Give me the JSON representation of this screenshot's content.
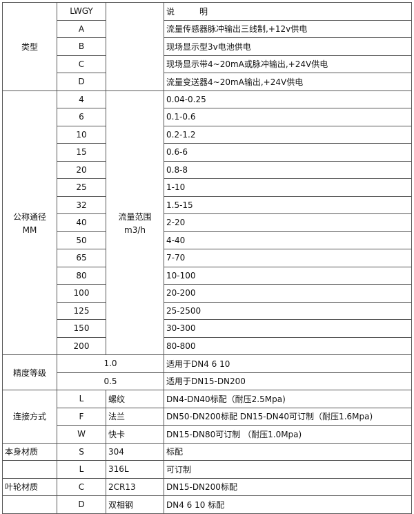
{
  "header": {
    "code": "LWGY",
    "desc": "说　　　明"
  },
  "type": {
    "label": "类型",
    "rows": [
      {
        "code": "A",
        "desc": "流量传感器脉冲输出三线制,+12v供电"
      },
      {
        "code": "B",
        "desc": "现场显示型3v电池供电"
      },
      {
        "code": "C",
        "desc": "现场显示带4~20mA或脉冲输出,+24V供电"
      },
      {
        "code": "D",
        "desc": "流量变送器4~20mA输出,+24V供电"
      }
    ]
  },
  "diameter": {
    "label": "公称通径",
    "unit": "MM",
    "flow_label": "流量范围",
    "flow_unit": "m3/h",
    "rows": [
      {
        "code": "4",
        "range": "0.04-0.25"
      },
      {
        "code": "6",
        "range": "0.1-0.6"
      },
      {
        "code": "10",
        "range": "0.2-1.2"
      },
      {
        "code": "15",
        "range": "0.6-6"
      },
      {
        "code": "20",
        "range": "0.8-8"
      },
      {
        "code": "25",
        "range": "1-10"
      },
      {
        "code": "32",
        "range": "1.5-15"
      },
      {
        "code": "40",
        "range": "2-20"
      },
      {
        "code": "50",
        "range": "4-40"
      },
      {
        "code": "65",
        "range": "7-70"
      },
      {
        "code": "80",
        "range": "10-100"
      },
      {
        "code": "100",
        "range": "20-200"
      },
      {
        "code": "125",
        "range": "25-2500"
      },
      {
        "code": "150",
        "range": "30-300"
      },
      {
        "code": "200",
        "range": "80-800"
      }
    ]
  },
  "accuracy": {
    "label": "精度等级",
    "rows": [
      {
        "code": "1.0",
        "desc": "适用于DN4  6  10"
      },
      {
        "code": "0.5",
        "desc": "适用于DN15-DN200"
      }
    ]
  },
  "connection": {
    "label": "连接方式",
    "rows": [
      {
        "code": "L",
        "name": "螺纹",
        "desc": "DN4-DN40标配（耐压2.5Mpa)"
      },
      {
        "code": "F",
        "name": "法兰",
        "desc": "DN50-DN200标配 DN15-DN40可订制（耐压1.6Mpa)"
      },
      {
        "code": "W",
        "name": "快卡",
        "desc": "DN15-DN80可订制 （耐压1.0Mpa)"
      }
    ]
  },
  "body_material": {
    "label": "本身材质",
    "rows": [
      {
        "code": "S",
        "name": "304",
        "desc": "标配"
      },
      {
        "code": "L",
        "name": "316L",
        "desc": "可订制"
      }
    ]
  },
  "impeller_material": {
    "label": "叶轮材质",
    "rows": [
      {
        "code": "C",
        "name": "2CR13",
        "desc": "DN15-DN200标配"
      },
      {
        "code": "D",
        "name": "双相钢",
        "desc": "DN4 6 10 标配"
      }
    ]
  }
}
